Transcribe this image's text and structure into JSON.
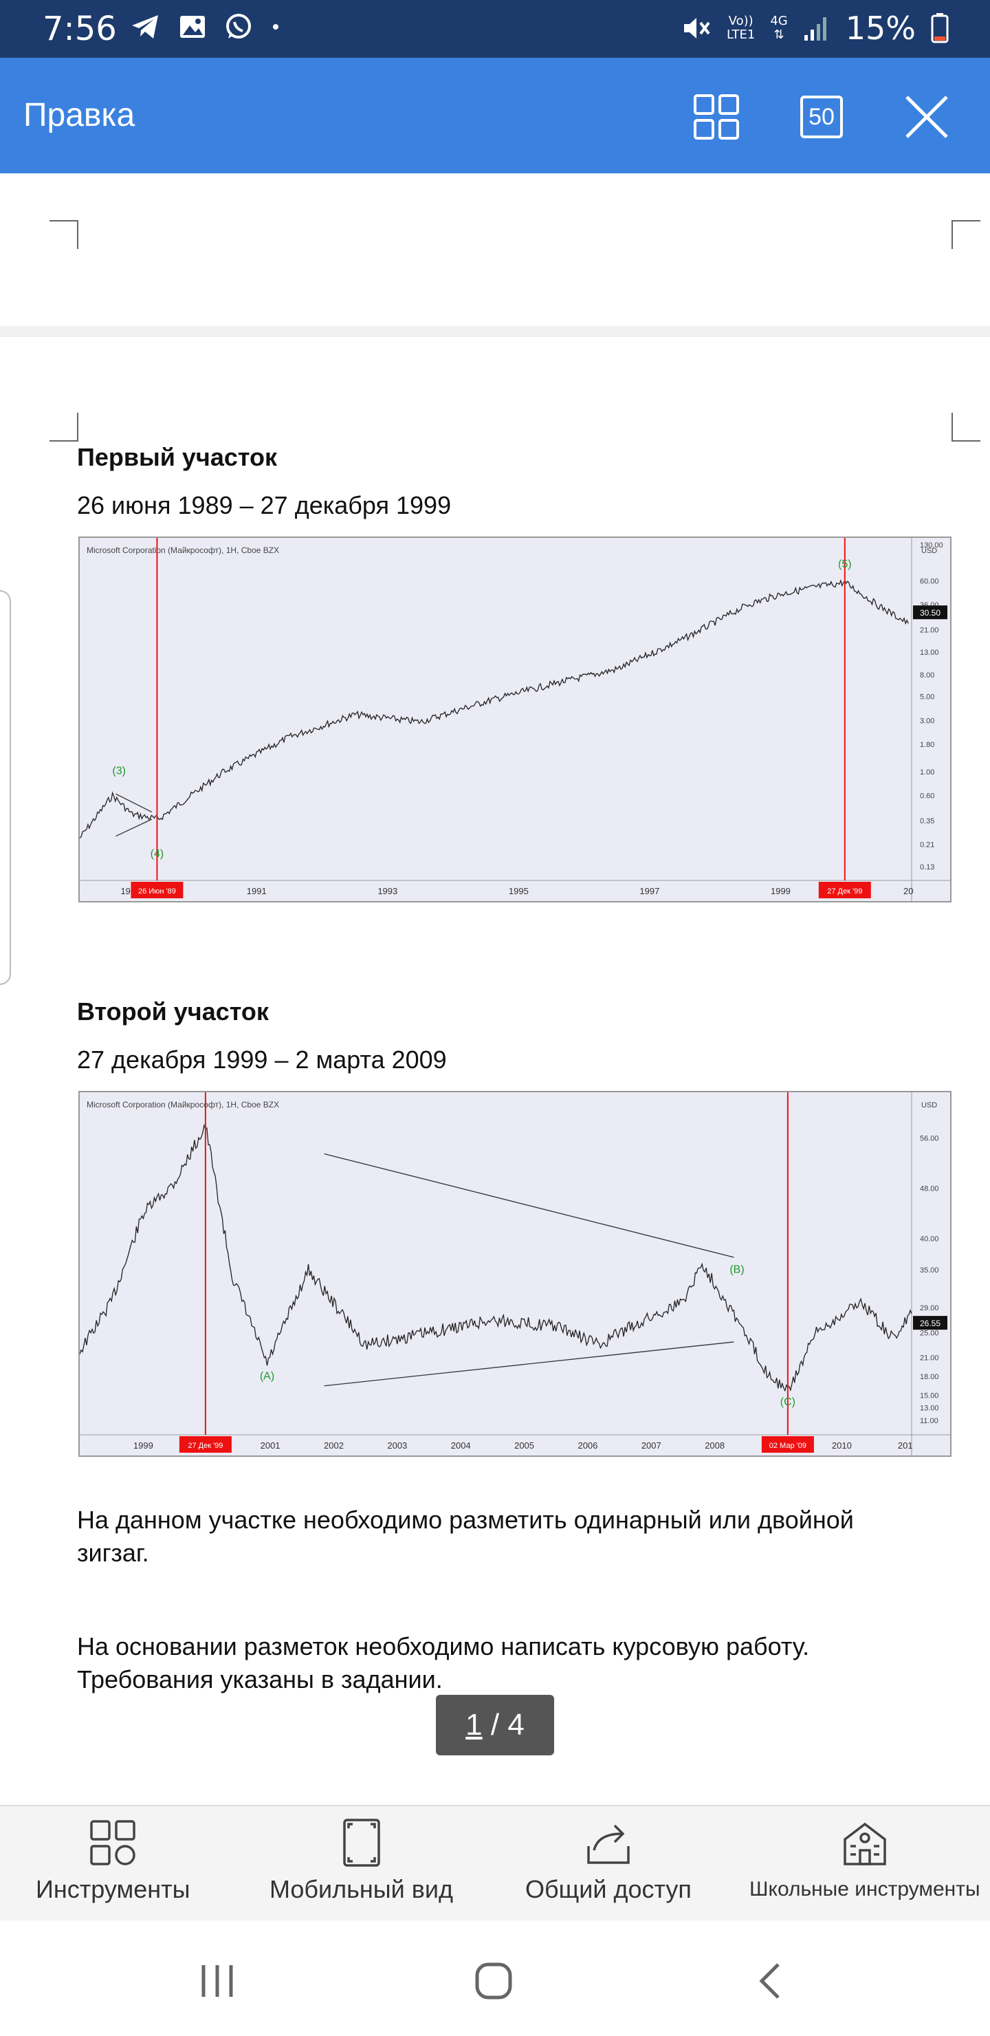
{
  "status_bar": {
    "time": "7:56",
    "left_icons": [
      "telegram-icon",
      "gallery-icon",
      "whatsapp-icon",
      "dot-icon"
    ],
    "network_top": "Vo))",
    "network_bottom": "LTE1",
    "net_type": "4G",
    "battery": "15%"
  },
  "app_bar": {
    "title": "Правка",
    "page_count": "50",
    "icons": [
      "grid-view-icon",
      "page-count-icon",
      "close-icon"
    ]
  },
  "document": {
    "section1": {
      "heading": "Первый участок",
      "dates": "26 июня 1989 – 27 декабря 1999"
    },
    "section2": {
      "heading": "Второй участок",
      "dates": "27 декабря 1999 – 2 марта 2009"
    },
    "para1": "На данном участке необходимо разметить одинарный или двойной зигзаг.",
    "para2": "На основании разметок необходимо написать курсовую работу. Требования указаны в задании."
  },
  "chart_data": [
    {
      "type": "line",
      "title": "Microsoft Corporation (Майкрософт), 1Н, Cboe BZX",
      "currency": "USD",
      "log_scale": true,
      "x_ticks": [
        "19",
        "1991",
        "1993",
        "1995",
        "1997",
        "1999",
        "20"
      ],
      "y_ticks": [
        "130.00",
        "60.00",
        "36.00",
        "21.00",
        "13.00",
        "8.00",
        "5.00",
        "3.00",
        "1.80",
        "1.00",
        "0.60",
        "0.35",
        "0.21",
        "0.13"
      ],
      "last_price": "30.50",
      "marker_labels": [
        "26 Июн '89",
        "27 Дек '99"
      ],
      "wave_labels": [
        "(3)",
        "(4)",
        "(5)"
      ],
      "series": [
        {
          "x": [
            1988.3,
            1988.8,
            1989.1,
            1989.5,
            1990.5,
            1991.5,
            1992.5,
            1993.5,
            1994.5,
            1995.5,
            1996.5,
            1997.5,
            1998.5,
            1999.0,
            1999.5,
            1999.98,
            2000.5,
            2000.95
          ],
          "y": [
            0.24,
            0.6,
            0.4,
            0.36,
            1.0,
            2.1,
            3.4,
            2.9,
            4.5,
            6.5,
            9.0,
            17.0,
            36.0,
            45.0,
            52.0,
            58.0,
            35.0,
            24.0
          ]
        }
      ]
    },
    {
      "type": "line",
      "title": "Microsoft Corporation (Майкрософт), 1Н, Cboe BZX",
      "currency": "USD",
      "log_scale": false,
      "x_ticks": [
        "1999",
        "2001",
        "2002",
        "2003",
        "2004",
        "2005",
        "2006",
        "2007",
        "2008",
        "2010",
        "201"
      ],
      "y_ticks": [
        "56.00",
        "48.00",
        "40.00",
        "35.00",
        "29.00",
        "25.00",
        "21.00",
        "18.00",
        "15.00",
        "13.00",
        "11.00"
      ],
      "last_price": "26.55",
      "marker_labels": [
        "27 Дек '99",
        "02 Мар '09"
      ],
      "wave_labels": [
        "(A)",
        "(B)",
        "(C)"
      ],
      "series": [
        {
          "x": [
            1998.0,
            1998.5,
            1999.0,
            1999.5,
            1999.98,
            2000.4,
            2000.95,
            2001.6,
            2002.5,
            2003.5,
            2004.5,
            2005.5,
            2006.2,
            2006.5,
            2007.5,
            2007.8,
            2008.3,
            2008.8,
            2009.15,
            2009.6,
            2010.3,
            2010.8,
            2011.1
          ],
          "y": [
            22.0,
            30.0,
            44.0,
            49.0,
            58.0,
            34.0,
            20.0,
            35.0,
            23.0,
            25.0,
            27.0,
            26.0,
            23.0,
            25.0,
            30.0,
            36.0,
            28.0,
            19.0,
            15.5,
            25.0,
            30.0,
            24.0,
            28.0
          ]
        }
      ]
    }
  ],
  "pager": {
    "current": "1",
    "separator": " / ",
    "total": "4"
  },
  "bottom_toolbar": {
    "tools": "Инструменты",
    "mobile_view": "Мобильный вид",
    "share": "Общий доступ",
    "school_tools": "Школьные инструменты"
  },
  "nav_bar": {
    "icons": [
      "recent-apps-icon",
      "home-icon",
      "back-icon"
    ]
  }
}
